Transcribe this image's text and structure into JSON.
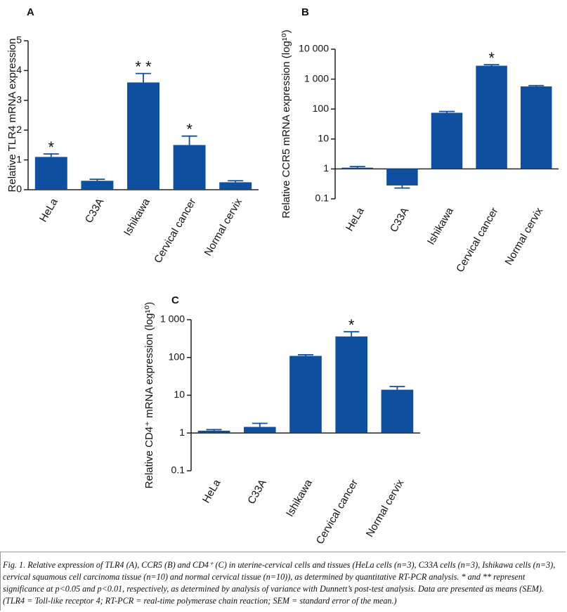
{
  "chart_data": [
    {
      "type": "bar",
      "label": "A",
      "ylabel": "Relative TLR4 mRNA expression",
      "categories": [
        "HeLa",
        "C33A",
        "Ishikawa",
        "Cervical cancer",
        "Normal cervix"
      ],
      "values": [
        1.1,
        0.3,
        3.6,
        1.5,
        0.25
      ],
      "errors": [
        0.1,
        0.05,
        0.3,
        0.3,
        0.05
      ],
      "annotations": [
        "*",
        null,
        "* *",
        "*",
        null
      ],
      "color": "#0f4f9f",
      "log": false,
      "ylim": [
        0,
        5
      ],
      "yticks": [
        0,
        1,
        2,
        3,
        4,
        5
      ]
    },
    {
      "type": "bar",
      "label": "B",
      "ylabel": "Relative CCR5 mRNA expression (log¹⁰)",
      "categories": [
        "HeLa",
        "C33A",
        "Ishikawa",
        "Cervical cancer",
        "Normal cervix"
      ],
      "values": [
        1.1,
        0.28,
        75,
        2800,
        570
      ],
      "errors": [
        0.1,
        0.05,
        8,
        250,
        40
      ],
      "annotations": [
        null,
        null,
        null,
        "*",
        null
      ],
      "color": "#0f4f9f",
      "log": true,
      "baseline": 1,
      "ylim": [
        0.1,
        10000
      ],
      "yticks": [
        0.1,
        1,
        10,
        100,
        {
          "value": 1000,
          "label": "1 000"
        },
        {
          "value": 10000,
          "label": "10 000"
        }
      ]
    },
    {
      "type": "bar",
      "label": "C",
      "ylabel": "Relative CD4⁺ mRNA expression (log¹⁰)",
      "categories": [
        "HeLa",
        "C33A",
        "Ishikawa",
        "Cervical cancer",
        "Normal cervix"
      ],
      "values": [
        1.15,
        1.45,
        110,
        360,
        14
      ],
      "errors": [
        0.08,
        0.35,
        8,
        120,
        3
      ],
      "annotations": [
        null,
        null,
        null,
        "*",
        null
      ],
      "color": "#0f4f9f",
      "log": true,
      "baseline": 1,
      "ylim": [
        0.1,
        1000
      ],
      "yticks": [
        0.1,
        1,
        10,
        100,
        {
          "value": 1000,
          "label": "1 000"
        }
      ]
    }
  ],
  "caption": "Fig. 1. Relative expression of TLR4 (A), CCR5 (B) and CD4⁺ (C) in uterine-cervical cells and tissues (HeLa cells (n=3), C33A cells (n=3), Ishikawa cells (n=3), cervical squamous cell carcinoma tissue (n=10) and normal cervical tissue (n=10)), as determined by quantitative RT-PCR analysis. * and ** represent significance at p<0.05 and p<0.01, respectively, as determined by analysis of variance with Dunnett’s post-test analysis. Data are presented as means (SEM). (TLR4 = Toll-like receptor 4; RT-PCR = real-time polymerase chain reaction; SEM = standard error of the mean.)"
}
